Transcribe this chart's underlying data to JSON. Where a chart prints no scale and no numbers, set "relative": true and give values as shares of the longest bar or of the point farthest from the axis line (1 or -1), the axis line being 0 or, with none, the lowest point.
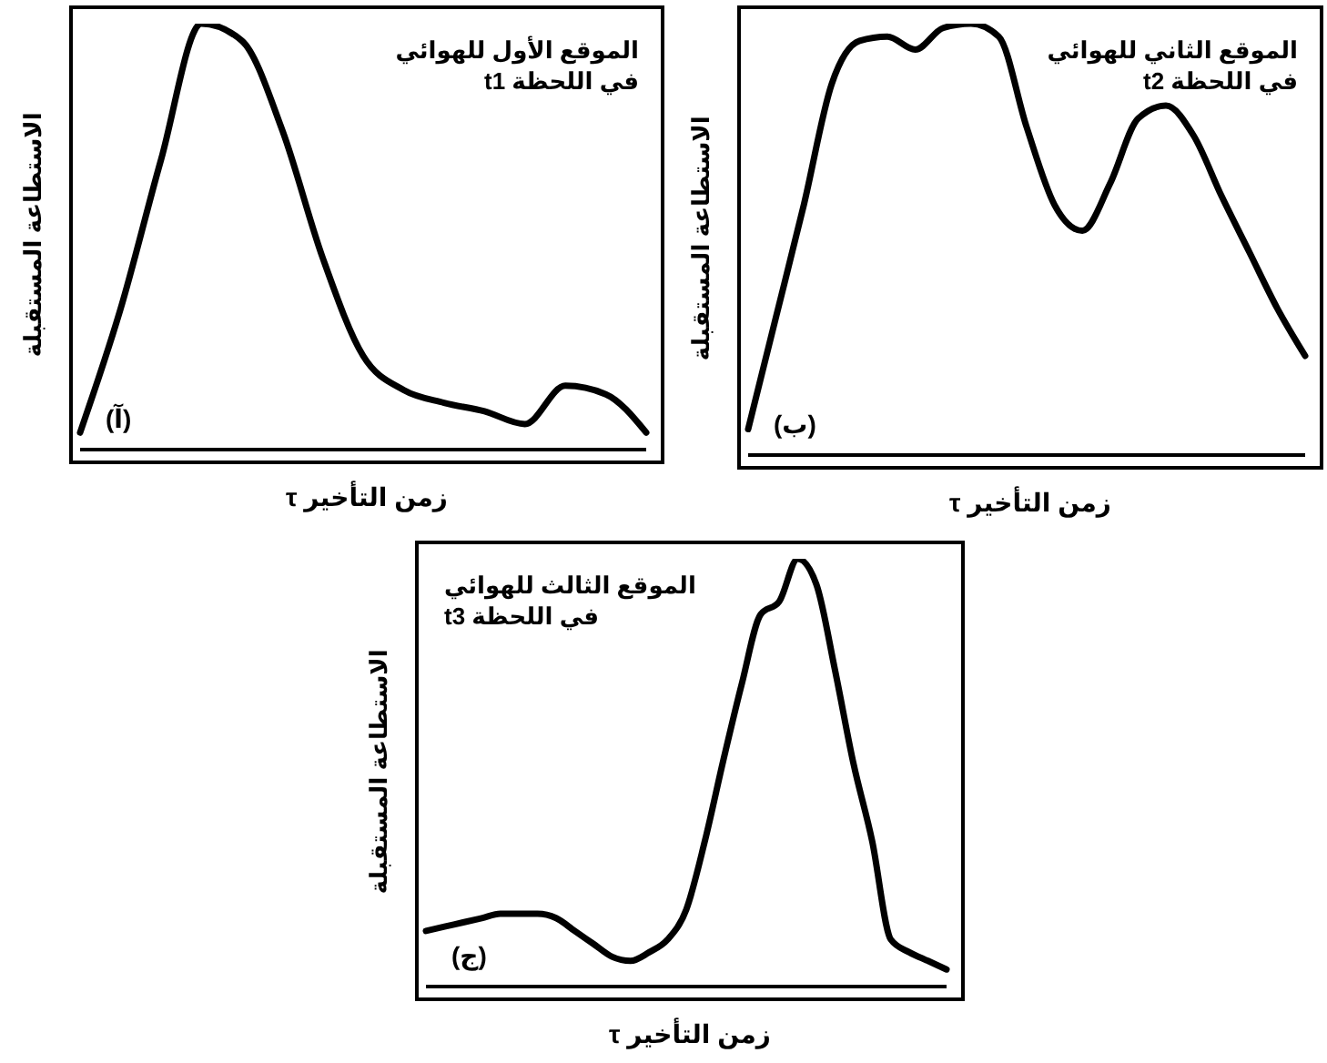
{
  "chart_data": [
    {
      "type": "line",
      "title": "الموقع الأول للهوائي",
      "subtitle": "في اللحظة t1",
      "xlabel": "زمن التأخير τ",
      "ylabel": "الاستطاعة المستقبلة",
      "annotations": [
        "(آ)"
      ],
      "relative": true,
      "categories": [
        null,
        null,
        null,
        null,
        null,
        null,
        null,
        null,
        null,
        null,
        null,
        null,
        null,
        null,
        null
      ],
      "series": [
        {
          "color": "#000000",
          "values": [
            0.04,
            0.33,
            0.68,
            1,
            0.96,
            0.75,
            0.45,
            0.22,
            0.14,
            0.11,
            0.09,
            0.06,
            0.15,
            0.13,
            0.04
          ]
        }
      ]
    },
    {
      "type": "line",
      "title": "الموقع الثاني للهوائي",
      "subtitle": "في اللحظة t2",
      "xlabel": "زمن التأخير τ",
      "ylabel": "الاستطاعة المستقبلة",
      "annotations": [
        "(ب)"
      ],
      "relative": true,
      "categories": [
        null,
        null,
        null,
        null,
        null,
        null,
        null,
        null,
        null,
        null,
        null,
        null,
        null,
        null,
        null,
        null,
        null,
        null,
        null,
        null,
        null
      ],
      "series": [
        {
          "color": "#000000",
          "values": [
            0.06,
            0.32,
            0.58,
            0.86,
            0.96,
            0.97,
            0.94,
            0.99,
            1,
            0.97,
            0.76,
            0.58,
            0.52,
            0.63,
            0.78,
            0.81,
            0.74,
            0.6,
            0.47,
            0.34,
            0.23
          ]
        }
      ]
    },
    {
      "type": "line",
      "title": "الموقع الثالث للهوائي",
      "subtitle": "في اللحظة t3",
      "xlabel": "زمن التأخير τ",
      "ylabel": "الاستطاعة المستقبلة",
      "annotations": [
        "(ج)"
      ],
      "relative": true,
      "categories": [
        null,
        null,
        null,
        null,
        null,
        null,
        null,
        null,
        null,
        null,
        null,
        null,
        null,
        null,
        null,
        null,
        null,
        null,
        null,
        null,
        null,
        null,
        null,
        null,
        null,
        null,
        null,
        null,
        null
      ],
      "series": [
        {
          "color": "#000000",
          "values": [
            0.13,
            0.14,
            0.15,
            0.16,
            0.17,
            0.17,
            0.17,
            0.16,
            0.13,
            0.1,
            0.07,
            0.06,
            0.08,
            0.11,
            0.18,
            0.34,
            0.53,
            0.71,
            0.87,
            0.9,
            1,
            0.94,
            0.74,
            0.52,
            0.34,
            0.11,
            0.08,
            0.06,
            0.04
          ]
        }
      ]
    }
  ]
}
